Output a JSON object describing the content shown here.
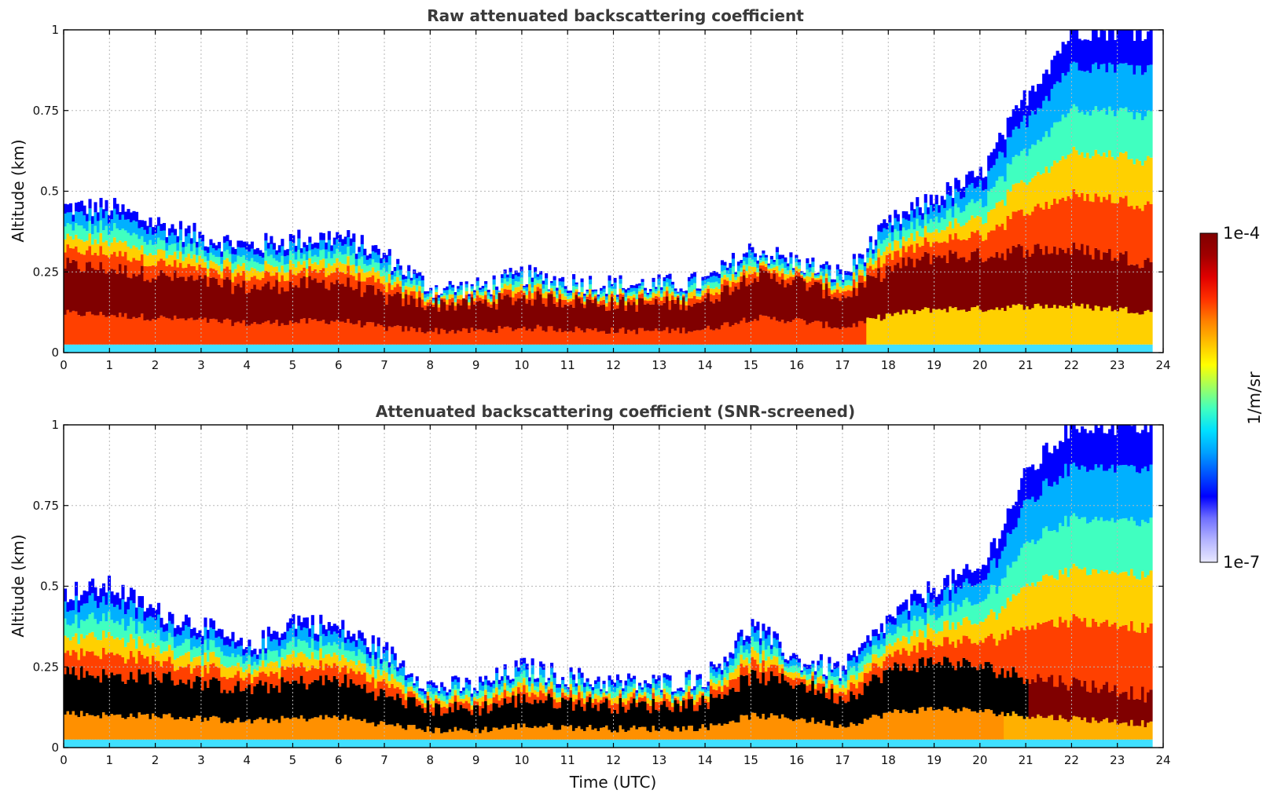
{
  "chart_data": [
    {
      "type": "heatmap",
      "id": "raw",
      "title": "Raw attenuated backscattering coefficient",
      "xlabel": "",
      "ylabel": "Altitude (km)",
      "xlim": [
        0,
        24
      ],
      "ylim": [
        0,
        1
      ],
      "x_ticks": [
        0,
        1,
        2,
        3,
        4,
        5,
        6,
        7,
        8,
        9,
        10,
        11,
        12,
        13,
        14,
        15,
        16,
        17,
        18,
        19,
        20,
        21,
        22,
        23,
        24
      ],
      "y_ticks": [
        0,
        0.25,
        0.5,
        0.75,
        1
      ],
      "grid": true,
      "screened": false,
      "profile_hours": [
        0,
        1,
        2,
        3,
        4,
        5,
        6,
        7,
        8,
        9,
        10,
        11,
        12,
        13,
        14,
        15,
        16,
        17,
        18,
        19,
        20,
        21,
        22,
        23,
        23.7
      ],
      "layer_top_km": [
        0.45,
        0.45,
        0.4,
        0.36,
        0.33,
        0.35,
        0.36,
        0.3,
        0.2,
        0.2,
        0.24,
        0.22,
        0.21,
        0.21,
        0.22,
        0.32,
        0.28,
        0.24,
        0.4,
        0.48,
        0.55,
        0.8,
        1.0,
        1.0,
        1.0
      ],
      "core_top_km": [
        0.27,
        0.26,
        0.24,
        0.22,
        0.2,
        0.21,
        0.22,
        0.17,
        0.15,
        0.15,
        0.17,
        0.16,
        0.15,
        0.15,
        0.16,
        0.24,
        0.22,
        0.17,
        0.26,
        0.3,
        0.3,
        0.32,
        0.32,
        0.3,
        0.28
      ],
      "data_end_hour": 23.7
    },
    {
      "type": "heatmap",
      "id": "snr",
      "title": "Attenuated backscattering coefficient (SNR-screened)",
      "xlabel": "Time (UTC)",
      "ylabel": "Altitude (km)",
      "xlim": [
        0,
        24
      ],
      "ylim": [
        0,
        1
      ],
      "x_ticks": [
        0,
        1,
        2,
        3,
        4,
        5,
        6,
        7,
        8,
        9,
        10,
        11,
        12,
        13,
        14,
        15,
        16,
        17,
        18,
        19,
        20,
        21,
        22,
        23,
        24
      ],
      "y_ticks": [
        0,
        0.25,
        0.5,
        0.75,
        1
      ],
      "grid": true,
      "screened": true,
      "profile_hours": [
        0,
        1,
        2,
        3,
        4,
        5,
        6,
        7,
        8,
        9,
        10,
        11,
        12,
        13,
        14,
        15,
        16,
        17,
        18,
        19,
        20,
        21,
        22,
        23,
        23.7
      ],
      "layer_top_km": [
        0.48,
        0.5,
        0.42,
        0.38,
        0.3,
        0.4,
        0.37,
        0.3,
        0.19,
        0.19,
        0.25,
        0.22,
        0.2,
        0.2,
        0.22,
        0.38,
        0.27,
        0.24,
        0.4,
        0.5,
        0.55,
        0.85,
        1.0,
        1.0,
        1.0
      ],
      "core_top_km": [
        0.24,
        0.22,
        0.22,
        0.2,
        0.18,
        0.2,
        0.21,
        0.16,
        0.12,
        0.12,
        0.15,
        0.14,
        0.13,
        0.13,
        0.14,
        0.22,
        0.2,
        0.15,
        0.24,
        0.27,
        0.25,
        0.22,
        0.2,
        0.18,
        0.16
      ],
      "data_end_hour": 23.7
    }
  ],
  "colorbar": {
    "max_label": "1e-4",
    "min_label": "1e-7",
    "unit_label": "1/m/sr",
    "colors": [
      "#e8e8ff",
      "#b4b4ff",
      "#7070ff",
      "#0000ff",
      "#0050ff",
      "#00a0ff",
      "#00e0ff",
      "#40ffc0",
      "#a0ff60",
      "#ffff00",
      "#ffc000",
      "#ff8000",
      "#ff3000",
      "#e00000",
      "#a00000",
      "#800000"
    ]
  }
}
